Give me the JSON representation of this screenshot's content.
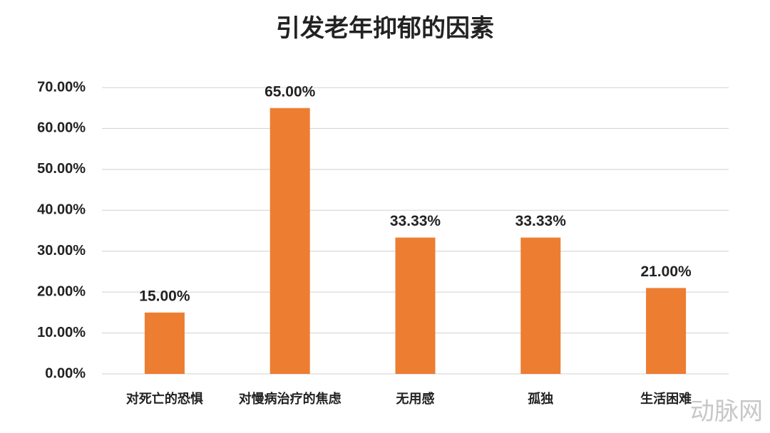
{
  "chart_data": {
    "type": "bar",
    "title": "引发老年抑郁的因素",
    "categories": [
      "对死亡的恐惧",
      "对慢病治疗的焦虑",
      "无用感",
      "孤独",
      "生活困难"
    ],
    "values": [
      15,
      65,
      33.33,
      33.33,
      21
    ],
    "value_labels": [
      "15.00%",
      "65.00%",
      "33.33%",
      "33.33%",
      "21.00%"
    ],
    "color": "#ed7d31",
    "ylim": [
      0,
      70
    ],
    "yticks": [
      {
        "value": 0,
        "label": "0.00%"
      },
      {
        "value": 10,
        "label": "10.00%"
      },
      {
        "value": 20,
        "label": "20.00%"
      },
      {
        "value": 30,
        "label": "30.00%"
      },
      {
        "value": 40,
        "label": "40.00%"
      },
      {
        "value": 50,
        "label": "50.00%"
      },
      {
        "value": 60,
        "label": "60.00%"
      },
      {
        "value": 70,
        "label": "70.00%"
      }
    ],
    "grid": true,
    "watermark": "动脉网"
  }
}
